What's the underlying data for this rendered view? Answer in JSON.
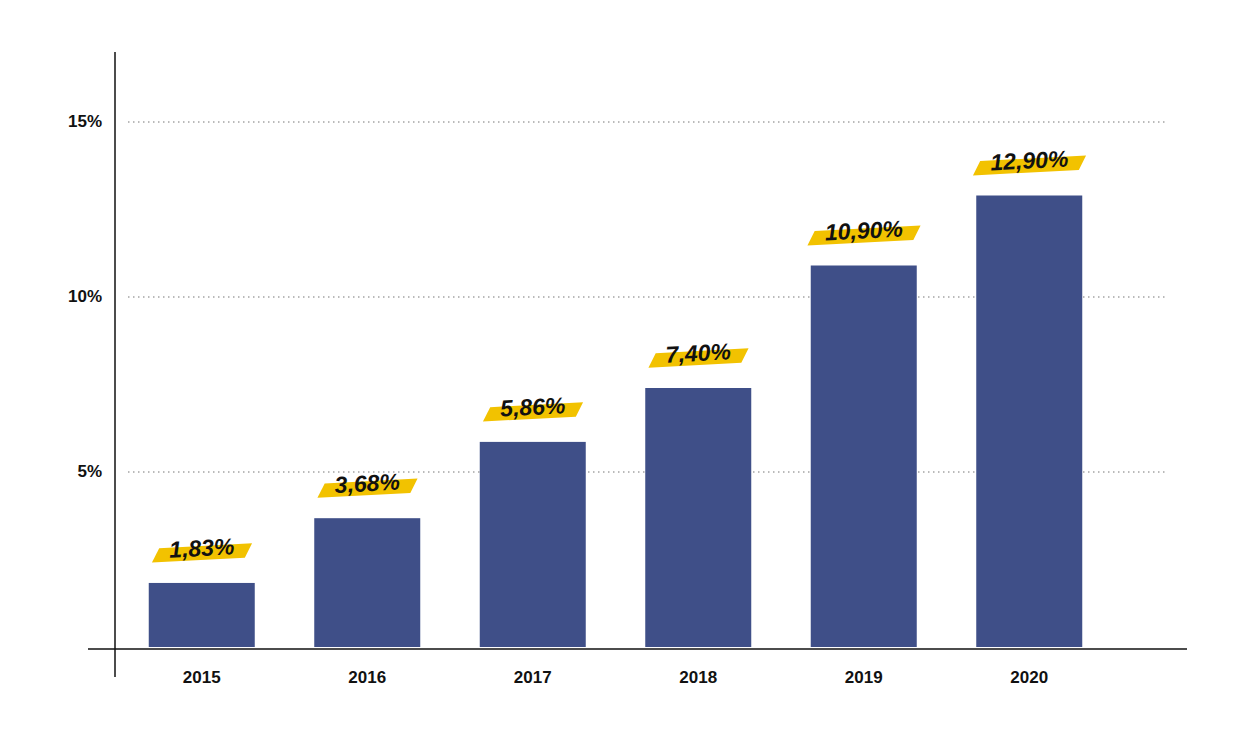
{
  "chart_data": {
    "type": "bar",
    "categories": [
      "2015",
      "2016",
      "2017",
      "2018",
      "2019",
      "2020"
    ],
    "values": [
      1.83,
      3.68,
      5.86,
      7.4,
      10.9,
      12.9
    ],
    "value_labels": [
      "1,83%",
      "3,68%",
      "5,86%",
      "7,40%",
      "10,90%",
      "12,90%"
    ],
    "color": "#3f4f88",
    "ylim": [
      0,
      17
    ],
    "yticks": [
      {
        "value": 5,
        "label": "5%"
      },
      {
        "value": 10,
        "label": "10%"
      },
      {
        "value": 15,
        "label": "15%"
      }
    ],
    "grid": true,
    "data_labels": true
  }
}
